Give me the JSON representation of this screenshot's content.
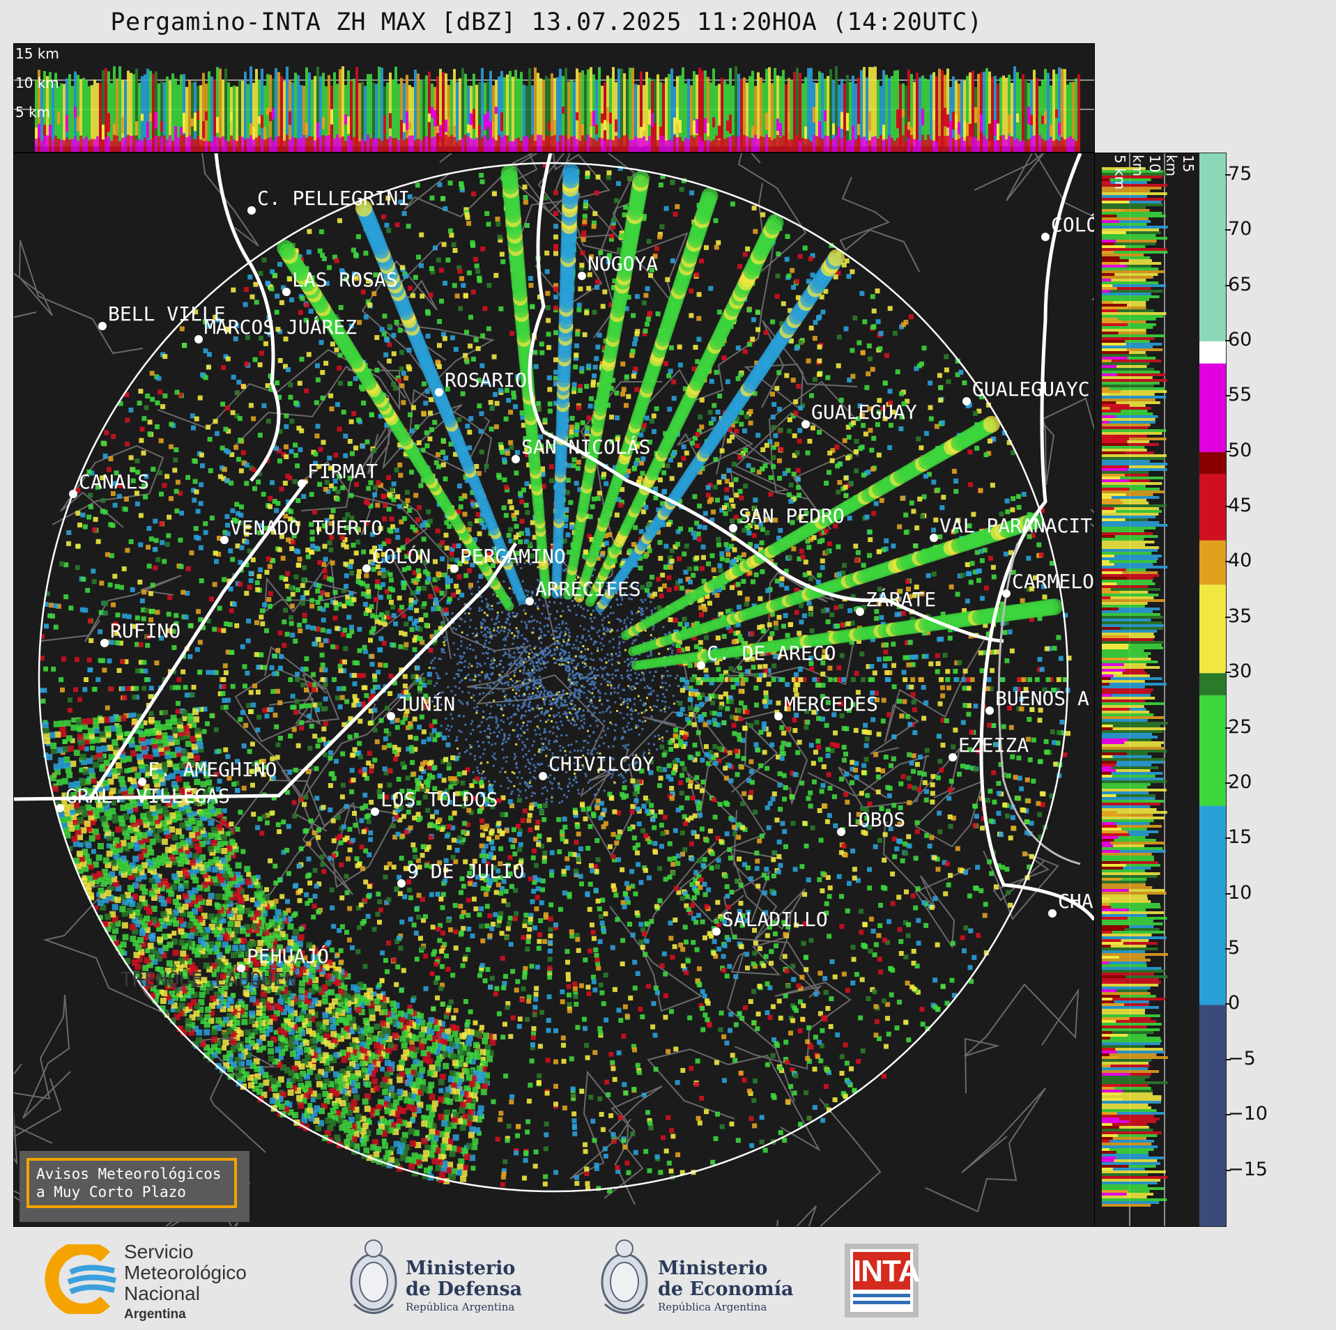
{
  "title": "Pergamino-INTA ZH MAX [dBZ] 13.07.2025 11:20HOA (14:20UTC)",
  "top_panel": {
    "altitude_labels": [
      "15 km",
      "10 km",
      "5 km"
    ]
  },
  "side_panel": {
    "altitude_labels": [
      "5 km",
      "10 km",
      "15 km"
    ]
  },
  "colorbar": {
    "ticks": [
      "75",
      "70",
      "65",
      "60",
      "55",
      "50",
      "45",
      "40",
      "35",
      "30",
      "25",
      "20",
      "15",
      "10",
      "5",
      "0",
      "−5",
      "−10",
      "−15"
    ],
    "tick_values": [
      75,
      70,
      65,
      60,
      55,
      50,
      45,
      40,
      35,
      30,
      25,
      20,
      15,
      10,
      5,
      0,
      -5,
      -10,
      -15
    ],
    "range": [
      -20,
      77
    ],
    "colors": {
      "below_zero": "#3b4a7a",
      "blue": "#2aa0d8",
      "green": "#3dd63d",
      "dark_green": "#2a7a2a",
      "yellow": "#f0e840",
      "orange": "#e0a020",
      "red": "#d01020",
      "dark_red": "#8a0000",
      "magenta": "#e000e0",
      "white": "#ffffff",
      "mint": "#8ad8b8"
    }
  },
  "cities": [
    {
      "name": "C. PELLEGRINI"
    },
    {
      "name": "LAS ROSAS"
    },
    {
      "name": "BELL VILLE"
    },
    {
      "name": "MARCOS JUÁREZ"
    },
    {
      "name": "NOGOYA"
    },
    {
      "name": "COLÓ"
    },
    {
      "name": "ROSARIO"
    },
    {
      "name": "GUALEGUAYC"
    },
    {
      "name": "GUALEGUAY"
    },
    {
      "name": "SAN NICOLÁS"
    },
    {
      "name": "FIRMAT"
    },
    {
      "name": "CANALS"
    },
    {
      "name": "SAN PEDRO"
    },
    {
      "name": "VENADO TUERTO"
    },
    {
      "name": "VAL PARANACIT"
    },
    {
      "name": "COLÓN"
    },
    {
      "name": "PERGAMINO"
    },
    {
      "name": "CARMELO"
    },
    {
      "name": "ARRECIFES"
    },
    {
      "name": "ZÁRATE"
    },
    {
      "name": "RUFINO"
    },
    {
      "name": "C. DE ARECO"
    },
    {
      "name": "JUNÍN"
    },
    {
      "name": "BUENOS A"
    },
    {
      "name": "MERCEDES"
    },
    {
      "name": "F. AMEGHINO"
    },
    {
      "name": "EZEIZA"
    },
    {
      "name": "CHIVILCOY"
    },
    {
      "name": "GRAL. VILLEGAS"
    },
    {
      "name": "LOS TOLDOS"
    },
    {
      "name": "LOBOS"
    },
    {
      "name": "9 DE JULIO"
    },
    {
      "name": "CHA"
    },
    {
      "name": "SALADILLO"
    },
    {
      "name": "PEHUAJÓ"
    },
    {
      "name": "TRENQUE LAUQUEN"
    }
  ],
  "avisos": {
    "line1": "Avisos Meteorológicos",
    "line2": "a Muy Corto Plazo"
  },
  "footer": {
    "smn": {
      "line1": "Servicio",
      "line2": "Meteorológico",
      "line3": "Nacional",
      "line4": "Argentina"
    },
    "defensa": {
      "line1": "Ministerio",
      "line2": "de Defensa",
      "line3": "República Argentina"
    },
    "economia": {
      "line1": "Ministerio",
      "line2": "de Economía",
      "line3": "República Argentina"
    },
    "inta": {
      "text": "INTA"
    }
  }
}
